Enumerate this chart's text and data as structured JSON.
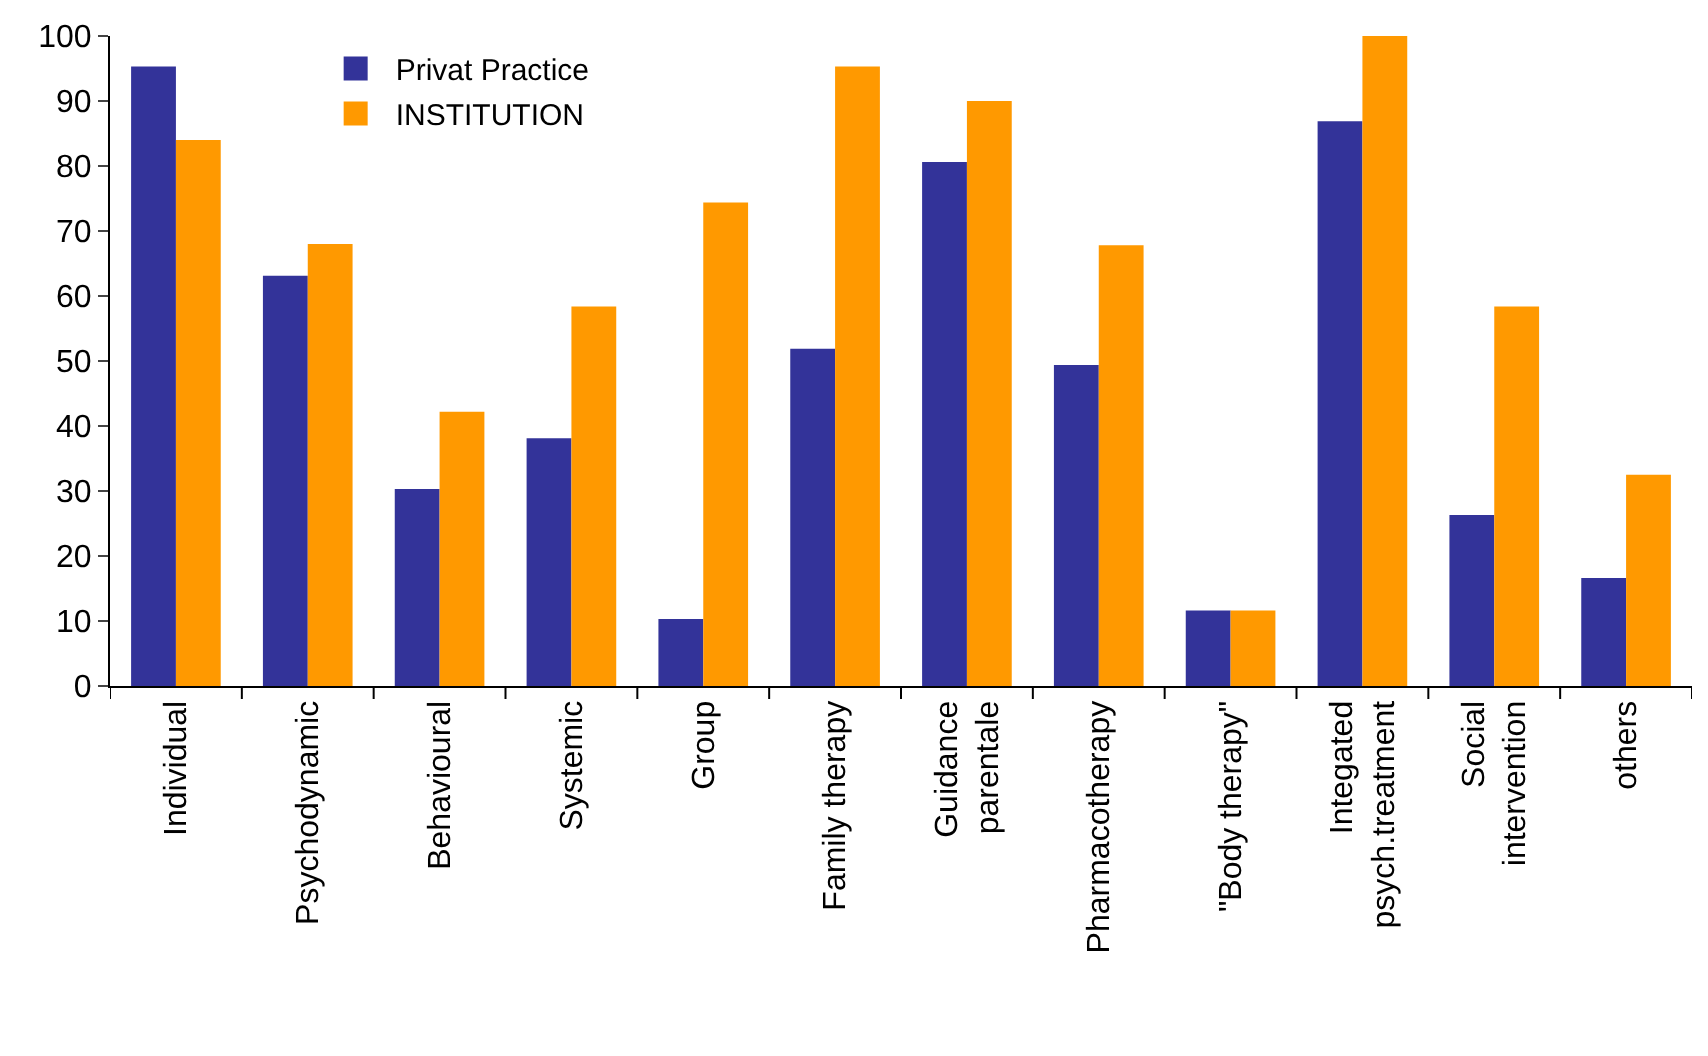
{
  "chart_data": {
    "type": "bar",
    "categories": [
      "Individual",
      "Psychodynamic",
      "Behavioural",
      "Systemic",
      "Group",
      "Family therapy",
      "Guidance\nparentale",
      "Pharmacotherapy",
      "\"Body therapy\"",
      "Integated\npsych.treatment",
      "Social\nintervention",
      "others"
    ],
    "series": [
      {
        "name": "Privat Practice",
        "color": "#333399",
        "values": [
          95.3,
          63.1,
          30.3,
          38.1,
          10.3,
          51.9,
          80.6,
          49.4,
          11.6,
          86.9,
          26.3,
          16.6
        ]
      },
      {
        "name": "INSTITUTION",
        "color": "#ff9900",
        "values": [
          84,
          68,
          42.2,
          58.4,
          74.4,
          95.3,
          90,
          67.8,
          11.6,
          100,
          58.4,
          32.5
        ]
      }
    ],
    "ylim": [
      0,
      100
    ],
    "yticks": [
      0,
      10,
      20,
      30,
      40,
      50,
      60,
      70,
      80,
      90,
      100
    ],
    "legend": "top left"
  }
}
